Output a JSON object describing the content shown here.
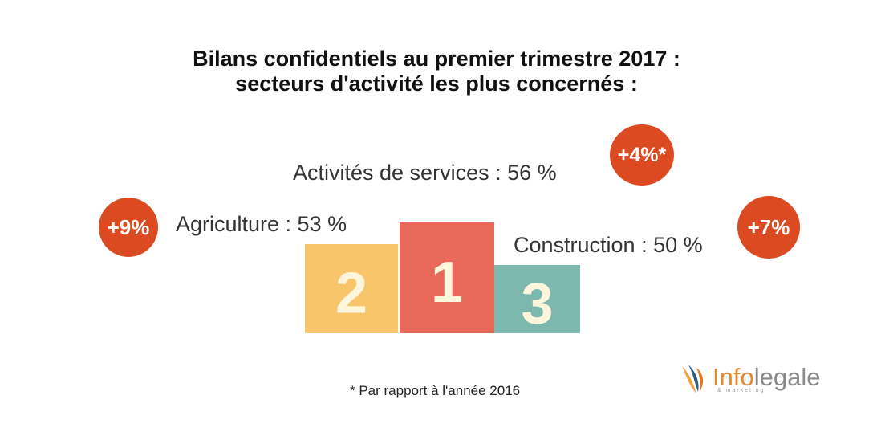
{
  "title": {
    "line1": "Bilans confidentiels au premier trimestre 2017 :",
    "line2": "secteurs d'activité les plus concernés :"
  },
  "chart_data": {
    "type": "bar",
    "categories": [
      "Agriculture",
      "Activités de services",
      "Construction"
    ],
    "values": [
      53,
      56,
      50
    ],
    "unit": "%",
    "labels": [
      "Agriculture : 53 %",
      "Activités de services : 56 %",
      "Construction : 50 %"
    ],
    "ranks": [
      "2",
      "1",
      "3"
    ],
    "changes": [
      "+9%",
      "+4%*",
      "+7%"
    ],
    "colors": [
      "#f9c56b",
      "#e8685a",
      "#7db8ae"
    ],
    "rank_text_color": "#fdf6dd"
  },
  "badge_color": "#dc4a22",
  "footnote": "* Par rapport à l'année 2016",
  "logo": {
    "brand_info": "Info",
    "brand_legale": "legale",
    "sub": "& marketing"
  }
}
